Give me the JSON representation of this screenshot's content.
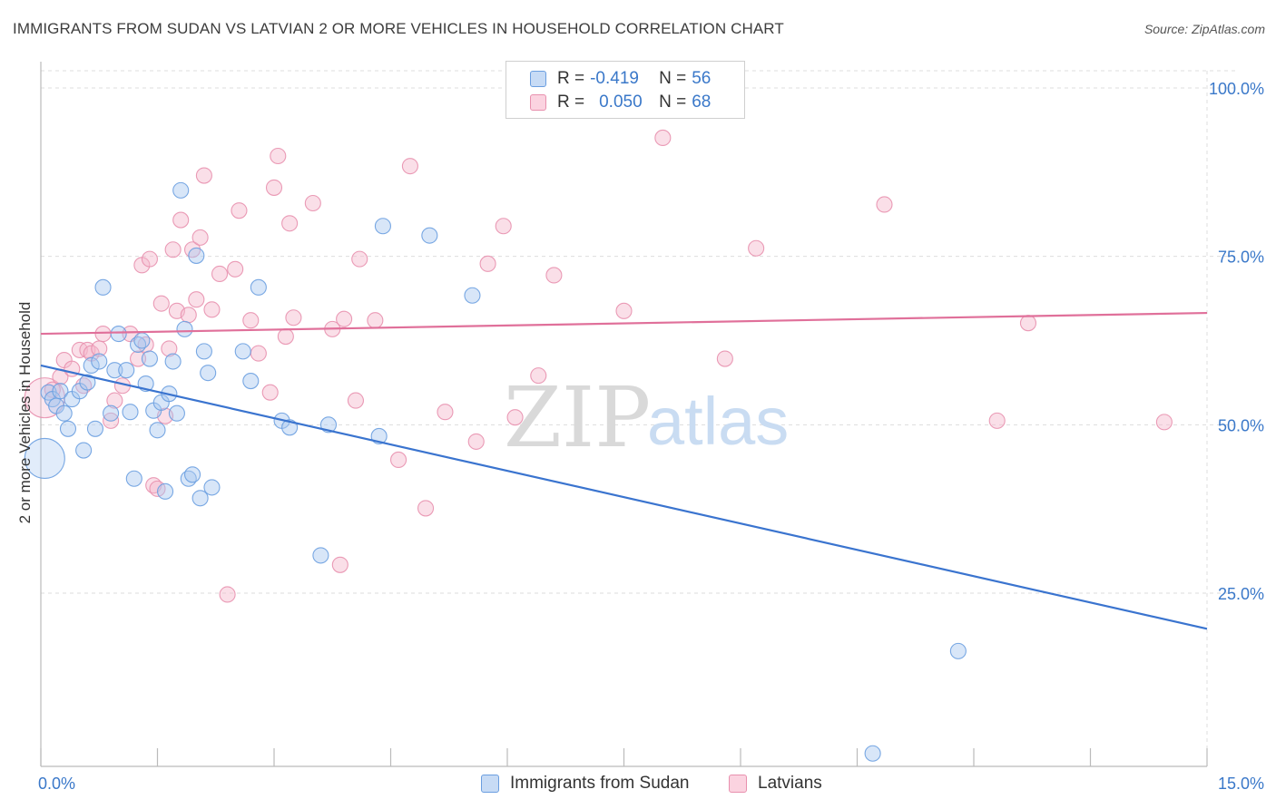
{
  "header": {
    "title": "IMMIGRANTS FROM SUDAN VS LATVIAN 2 OR MORE VEHICLES IN HOUSEHOLD CORRELATION CHART",
    "source": "Source: ZipAtlas.com"
  },
  "watermark": {
    "zip": "ZIP",
    "atlas": "atlas"
  },
  "legend": {
    "rows": [
      {
        "r_label": "R =",
        "r_value": "-0.419",
        "n_label": "N =",
        "n_value": "56",
        "color": "#a9c8f0"
      },
      {
        "r_label": "R =",
        "r_value": "0.050",
        "n_label": "N =",
        "n_value": "68",
        "color": "#f5b8cd"
      }
    ]
  },
  "bottom_legend": {
    "series1": "Immigrants from Sudan",
    "series2": "Latvians"
  },
  "colors": {
    "sudan_fill": "#a9c8f0",
    "sudan_stroke": "#6a9ee0",
    "sudan_line": "#3a74cf",
    "latvian_fill": "#f5b8cd",
    "latvian_stroke": "#e890ae",
    "latvian_line": "#e0709a",
    "axis_text": "#3a78c9",
    "grid": "#dddddd"
  },
  "chart_data": {
    "type": "scatter",
    "title": "IMMIGRANTS FROM SUDAN VS LATVIAN 2 OR MORE VEHICLES IN HOUSEHOLD CORRELATION CHART",
    "xlabel": "",
    "ylabel": "2 or more Vehicles in Household",
    "xlim": [
      0,
      15
    ],
    "ylim": [
      0,
      105
    ],
    "x_tick_labels": [
      "0.0%",
      "15.0%"
    ],
    "y_ticks": [
      25,
      50,
      75,
      100
    ],
    "y_tick_labels": [
      "25.0%",
      "50.0%",
      "75.0%",
      "100.0%"
    ],
    "grid": true,
    "legend_position": "top-center",
    "series": [
      {
        "name": "Immigrants from Sudan",
        "trend": {
          "x": [
            0,
            15
          ],
          "y": [
            58.8,
            19.7
          ]
        },
        "points": [
          {
            "x": 0.05,
            "y": 45.0,
            "big": true
          },
          {
            "x": 0.1,
            "y": 54.8
          },
          {
            "x": 0.15,
            "y": 53.8
          },
          {
            "x": 0.2,
            "y": 52.8
          },
          {
            "x": 0.25,
            "y": 55.0
          },
          {
            "x": 0.3,
            "y": 51.7
          },
          {
            "x": 0.35,
            "y": 49.4
          },
          {
            "x": 0.4,
            "y": 53.8
          },
          {
            "x": 0.5,
            "y": 55.0
          },
          {
            "x": 0.55,
            "y": 46.2
          },
          {
            "x": 0.6,
            "y": 56.3
          },
          {
            "x": 0.65,
            "y": 58.8
          },
          {
            "x": 0.7,
            "y": 49.4
          },
          {
            "x": 0.75,
            "y": 59.4
          },
          {
            "x": 0.8,
            "y": 70.4
          },
          {
            "x": 0.9,
            "y": 51.7
          },
          {
            "x": 0.95,
            "y": 58.1
          },
          {
            "x": 1.0,
            "y": 63.5
          },
          {
            "x": 1.1,
            "y": 58.1
          },
          {
            "x": 1.15,
            "y": 51.9
          },
          {
            "x": 1.2,
            "y": 42.0
          },
          {
            "x": 1.25,
            "y": 61.9
          },
          {
            "x": 1.3,
            "y": 62.5
          },
          {
            "x": 1.35,
            "y": 56.1
          },
          {
            "x": 1.4,
            "y": 59.8
          },
          {
            "x": 1.45,
            "y": 52.1
          },
          {
            "x": 1.5,
            "y": 49.2
          },
          {
            "x": 1.55,
            "y": 53.3
          },
          {
            "x": 1.6,
            "y": 40.1
          },
          {
            "x": 1.65,
            "y": 54.6
          },
          {
            "x": 1.7,
            "y": 59.4
          },
          {
            "x": 1.75,
            "y": 51.7
          },
          {
            "x": 1.8,
            "y": 84.8
          },
          {
            "x": 1.85,
            "y": 64.2
          },
          {
            "x": 1.9,
            "y": 42.0
          },
          {
            "x": 1.95,
            "y": 42.6
          },
          {
            "x": 2.0,
            "y": 75.1
          },
          {
            "x": 2.05,
            "y": 39.1
          },
          {
            "x": 2.1,
            "y": 60.9
          },
          {
            "x": 2.15,
            "y": 57.7
          },
          {
            "x": 2.2,
            "y": 40.7
          },
          {
            "x": 2.6,
            "y": 60.9
          },
          {
            "x": 2.7,
            "y": 56.5
          },
          {
            "x": 2.8,
            "y": 70.4
          },
          {
            "x": 3.1,
            "y": 50.6
          },
          {
            "x": 3.2,
            "y": 49.6
          },
          {
            "x": 3.6,
            "y": 30.6
          },
          {
            "x": 3.7,
            "y": 50.0
          },
          {
            "x": 4.35,
            "y": 48.3
          },
          {
            "x": 4.4,
            "y": 79.5
          },
          {
            "x": 5.0,
            "y": 78.1
          },
          {
            "x": 5.55,
            "y": 69.2
          },
          {
            "x": 11.8,
            "y": 16.4
          },
          {
            "x": 10.7,
            "y": 1.2
          }
        ]
      },
      {
        "name": "Latvians",
        "trend": {
          "x": [
            0,
            15
          ],
          "y": [
            63.5,
            66.6
          ]
        },
        "points": [
          {
            "x": 0.05,
            "y": 54.0,
            "big": true
          },
          {
            "x": 0.15,
            "y": 55.2
          },
          {
            "x": 0.25,
            "y": 57.1
          },
          {
            "x": 0.3,
            "y": 59.6
          },
          {
            "x": 0.4,
            "y": 58.3
          },
          {
            "x": 0.5,
            "y": 61.1
          },
          {
            "x": 0.55,
            "y": 55.8
          },
          {
            "x": 0.6,
            "y": 61.1
          },
          {
            "x": 0.65,
            "y": 60.6
          },
          {
            "x": 0.75,
            "y": 61.3
          },
          {
            "x": 0.8,
            "y": 63.5
          },
          {
            "x": 0.9,
            "y": 50.6
          },
          {
            "x": 0.95,
            "y": 53.6
          },
          {
            "x": 1.05,
            "y": 55.8
          },
          {
            "x": 1.15,
            "y": 63.5
          },
          {
            "x": 1.25,
            "y": 59.8
          },
          {
            "x": 1.3,
            "y": 73.7
          },
          {
            "x": 1.35,
            "y": 61.9
          },
          {
            "x": 1.4,
            "y": 74.6
          },
          {
            "x": 1.45,
            "y": 41.0
          },
          {
            "x": 1.5,
            "y": 40.5
          },
          {
            "x": 1.55,
            "y": 68.0
          },
          {
            "x": 1.6,
            "y": 51.3
          },
          {
            "x": 1.65,
            "y": 61.3
          },
          {
            "x": 1.7,
            "y": 76.0
          },
          {
            "x": 1.75,
            "y": 66.9
          },
          {
            "x": 1.8,
            "y": 80.4
          },
          {
            "x": 1.9,
            "y": 66.3
          },
          {
            "x": 1.95,
            "y": 76.0
          },
          {
            "x": 2.0,
            "y": 68.6
          },
          {
            "x": 2.05,
            "y": 77.8
          },
          {
            "x": 2.1,
            "y": 87.0
          },
          {
            "x": 2.2,
            "y": 67.1
          },
          {
            "x": 2.3,
            "y": 72.4
          },
          {
            "x": 2.4,
            "y": 24.8
          },
          {
            "x": 2.5,
            "y": 73.1
          },
          {
            "x": 2.55,
            "y": 81.8
          },
          {
            "x": 2.7,
            "y": 65.5
          },
          {
            "x": 2.8,
            "y": 60.6
          },
          {
            "x": 2.95,
            "y": 54.8
          },
          {
            "x": 3.0,
            "y": 85.2
          },
          {
            "x": 3.05,
            "y": 89.9
          },
          {
            "x": 3.15,
            "y": 63.1
          },
          {
            "x": 3.2,
            "y": 79.9
          },
          {
            "x": 3.25,
            "y": 65.9
          },
          {
            "x": 3.5,
            "y": 82.9
          },
          {
            "x": 3.75,
            "y": 64.2
          },
          {
            "x": 3.85,
            "y": 29.2
          },
          {
            "x": 3.9,
            "y": 65.7
          },
          {
            "x": 4.05,
            "y": 53.6
          },
          {
            "x": 4.1,
            "y": 74.6
          },
          {
            "x": 4.3,
            "y": 65.5
          },
          {
            "x": 4.6,
            "y": 44.8
          },
          {
            "x": 4.75,
            "y": 88.4
          },
          {
            "x": 4.95,
            "y": 37.6
          },
          {
            "x": 5.2,
            "y": 51.9
          },
          {
            "x": 5.6,
            "y": 47.5
          },
          {
            "x": 5.75,
            "y": 73.9
          },
          {
            "x": 5.95,
            "y": 79.5
          },
          {
            "x": 6.1,
            "y": 51.1
          },
          {
            "x": 6.4,
            "y": 57.3
          },
          {
            "x": 6.6,
            "y": 72.2
          },
          {
            "x": 7.5,
            "y": 66.9
          },
          {
            "x": 8.0,
            "y": 92.6
          },
          {
            "x": 8.8,
            "y": 59.8
          },
          {
            "x": 9.2,
            "y": 76.2
          },
          {
            "x": 10.85,
            "y": 82.7
          },
          {
            "x": 12.3,
            "y": 50.6
          },
          {
            "x": 12.7,
            "y": 65.1
          },
          {
            "x": 14.45,
            "y": 50.4
          }
        ]
      }
    ]
  }
}
